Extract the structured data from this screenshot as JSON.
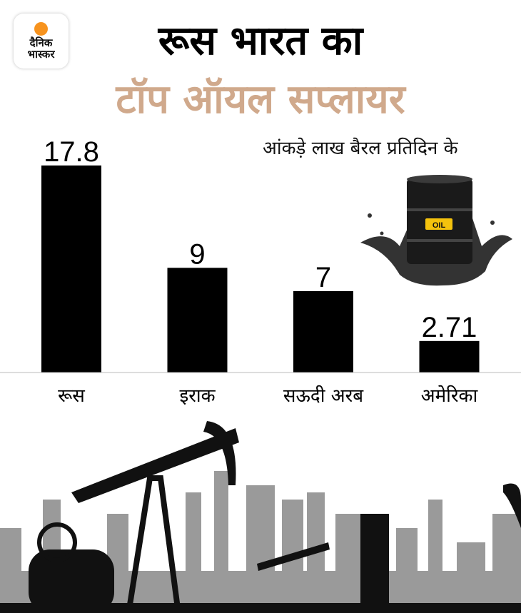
{
  "logo": {
    "line1": "दैनिक",
    "line2": "भास्कर",
    "accent": "#f7931e"
  },
  "title": {
    "line1": "रूस भारत का",
    "line2": "टॉप ऑयल सप्लायर",
    "line2_color": "#d0a98c"
  },
  "unit_note": "आंकड़े लाख बैरल प्रतिदिन के",
  "barrel_label": "OIL",
  "chart_data": {
    "type": "bar",
    "categories": [
      "रूस",
      "इराक",
      "सऊदी अरब",
      "अमेरिका"
    ],
    "values": [
      17.8,
      9,
      7,
      2.71
    ],
    "value_labels": [
      "17.8",
      "9",
      "7",
      "2.71"
    ],
    "ylim": [
      0,
      20
    ],
    "bar_color": "#000000",
    "grid": false
  }
}
